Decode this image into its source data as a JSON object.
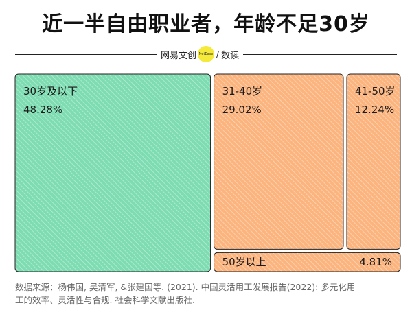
{
  "title": "近一半自由职业者，年龄不足30岁",
  "brand": {
    "left_text": "网易文创",
    "logo_text": "NetEase",
    "separator": "/",
    "right_text": "数读"
  },
  "colors": {
    "green": "#7ddcb1",
    "orange": "#fcb47e",
    "text": "#1a1a1a"
  },
  "chart_data": {
    "type": "treemap",
    "unit": "%",
    "items": [
      {
        "label": "30岁及以下",
        "value": 48.28,
        "value_label": "48.28%",
        "color": "#7ddcb1"
      },
      {
        "label": "31-40岁",
        "value": 29.02,
        "value_label": "29.02%",
        "color": "#fcb47e"
      },
      {
        "label": "41-50岁",
        "value": 12.24,
        "value_label": "12.24%",
        "color": "#fcb47e"
      },
      {
        "label": "50岁以上",
        "value": 4.81,
        "value_label": "4.81%",
        "color": "#fcb47e"
      }
    ]
  },
  "footer": {
    "line1": "数据来源：杨伟国, 吴清军, &张建国等. (2021). 中国灵活用工发展报告(2022): 多元化用",
    "line2": "工的效率、灵活性与合规. 社会科学文献出版社."
  }
}
